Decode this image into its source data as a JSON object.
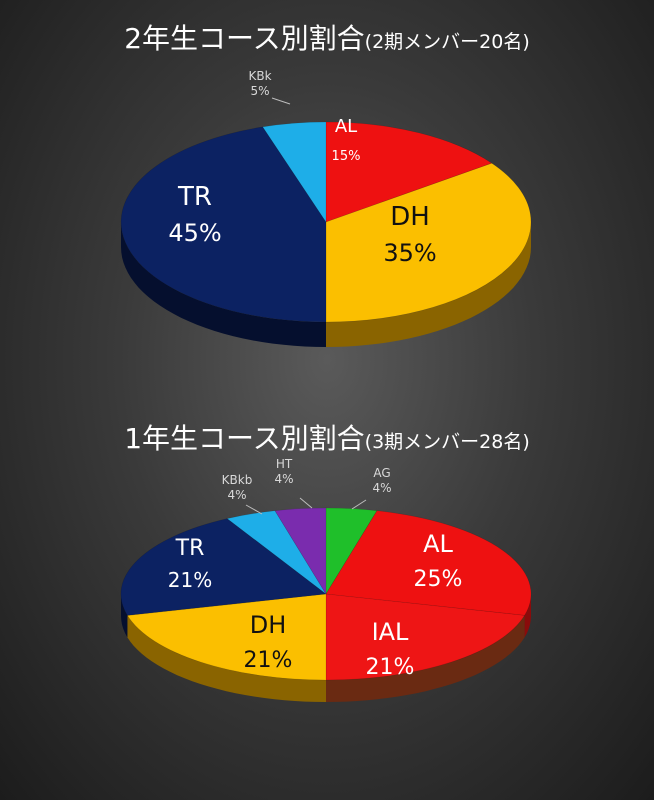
{
  "chart_data": [
    {
      "type": "pie",
      "title": "2年生コース別割合",
      "subtitle": "(2期メンバー20名)",
      "start_angle_deg": 0,
      "slices": [
        {
          "label": "AL",
          "value": 15,
          "pct_text": "15%",
          "color": "#ee1111",
          "side": "#8a0b0b"
        },
        {
          "label": "DH",
          "value": 35,
          "pct_text": "35%",
          "color": "#fbbf00",
          "side": "#8a6400"
        },
        {
          "label": "TR",
          "value": 45,
          "pct_text": "45%",
          "color": "#0c2262",
          "side": "#050f2e"
        },
        {
          "label": "KBk",
          "value": 5,
          "pct_text": "5%",
          "color": "#1eaee8",
          "side": "#0c5f82"
        }
      ]
    },
    {
      "type": "pie",
      "title": "1年生コース別割合",
      "subtitle": "(3期メンバー28名)",
      "start_angle_deg": 0,
      "slices": [
        {
          "label": "AG",
          "value": 4,
          "pct_text": "4%",
          "color": "#1fbf2a",
          "side": "#0e6a14"
        },
        {
          "label": "AL",
          "value": 25,
          "pct_text": "25%",
          "color": "#ee1111",
          "side": "#8a0b0b"
        },
        {
          "label": "IAL",
          "value": 21,
          "pct_text": "21%",
          "color": "#ee1515",
          "side": "#6a2a12"
        },
        {
          "label": "DH",
          "value": 21,
          "pct_text": "21%",
          "color": "#fbbf00",
          "side": "#8a6400"
        },
        {
          "label": "TR",
          "value": 21,
          "pct_text": "21%",
          "color": "#0c2262",
          "side": "#050f2e"
        },
        {
          "label": "KBkb",
          "value": 4,
          "pct_text": "4%",
          "color": "#1eaee8",
          "side": "#0c5f82"
        },
        {
          "label": "HT",
          "value": 4,
          "pct_text": "4%",
          "color": "#7a2cae",
          "side": "#3e165a"
        }
      ]
    }
  ]
}
